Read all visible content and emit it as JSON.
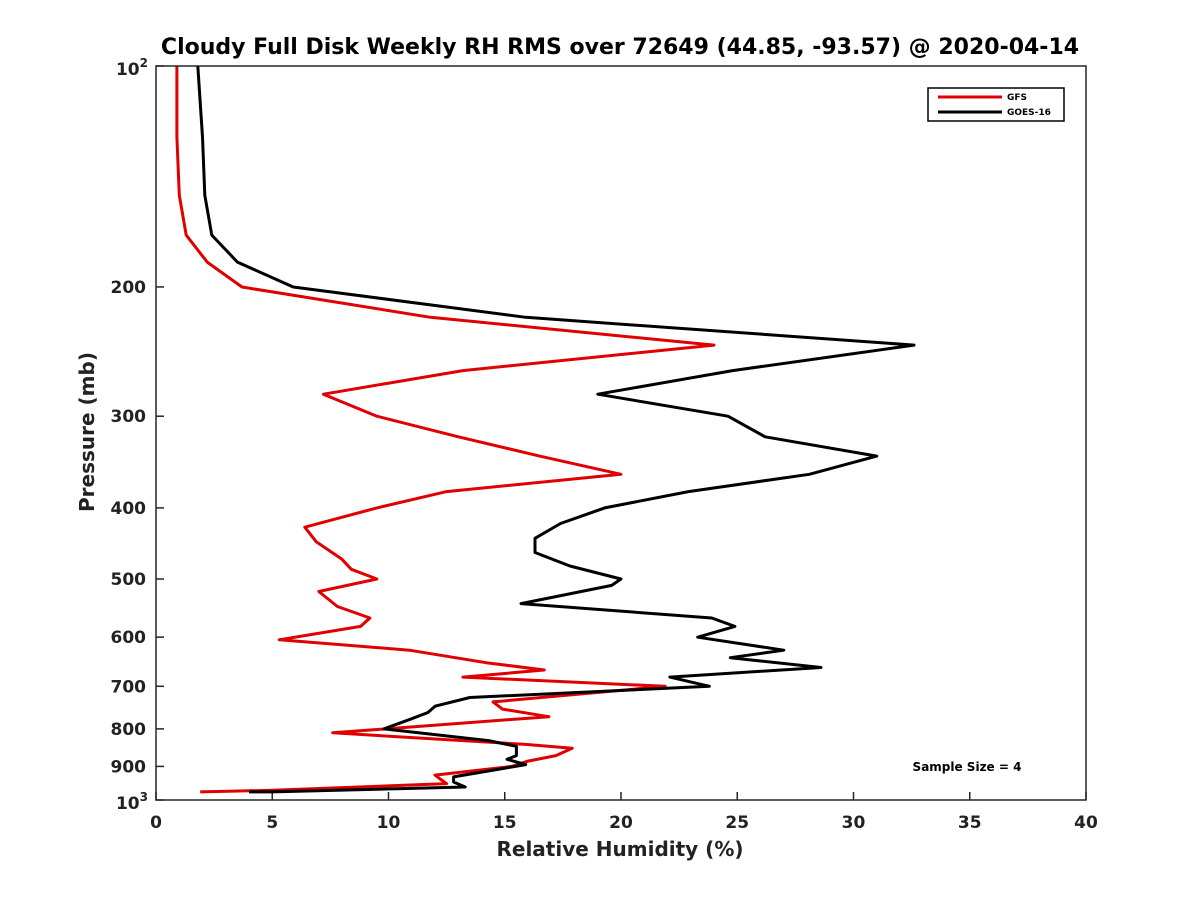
{
  "chart_data": {
    "type": "line",
    "title": "Cloudy Full Disk Weekly RH RMS over 72649 (44.85, -93.57) @ 2020-04-14",
    "xlabel": "Relative Humidity (%)",
    "ylabel": "Pressure (mb)",
    "xlim": [
      0,
      40
    ],
    "ylim": [
      100,
      1000
    ],
    "y_scale": "log",
    "y_reversed": true,
    "grid": false,
    "legend_position": "top-right",
    "x_ticks": [
      0,
      5,
      10,
      15,
      20,
      25,
      30,
      35,
      40
    ],
    "y_ticks": [
      {
        "value": 100,
        "base": "10",
        "exp": "2"
      },
      {
        "value": 200,
        "label": "200"
      },
      {
        "value": 300,
        "label": "300"
      },
      {
        "value": 400,
        "label": "400"
      },
      {
        "value": 500,
        "label": "500"
      },
      {
        "value": 600,
        "label": "600"
      },
      {
        "value": 700,
        "label": "700"
      },
      {
        "value": 800,
        "label": "800"
      },
      {
        "value": 900,
        "label": "900"
      },
      {
        "value": 1000,
        "base": "10",
        "exp": "3"
      }
    ],
    "annotation": "Sample Size = 4",
    "series": [
      {
        "name": "GFS",
        "color": "#e00000",
        "points": [
          [
            0.9,
            100
          ],
          [
            0.9,
            125
          ],
          [
            1.0,
            150
          ],
          [
            1.3,
            170
          ],
          [
            2.2,
            185
          ],
          [
            3.7,
            200
          ],
          [
            11.8,
            220
          ],
          [
            24.0,
            240
          ],
          [
            13.2,
            260
          ],
          [
            7.2,
            280
          ],
          [
            9.5,
            300
          ],
          [
            13.0,
            320
          ],
          [
            16.5,
            340
          ],
          [
            20.0,
            360
          ],
          [
            12.5,
            380
          ],
          [
            9.5,
            400
          ],
          [
            6.4,
            425
          ],
          [
            6.9,
            445
          ],
          [
            8.0,
            470
          ],
          [
            8.4,
            485
          ],
          [
            9.5,
            500
          ],
          [
            7.0,
            520
          ],
          [
            7.8,
            545
          ],
          [
            9.2,
            565
          ],
          [
            8.8,
            580
          ],
          [
            5.3,
            605
          ],
          [
            10.9,
            625
          ],
          [
            14.2,
            650
          ],
          [
            16.7,
            665
          ],
          [
            13.2,
            680
          ],
          [
            21.9,
            700
          ],
          [
            14.5,
            735
          ],
          [
            14.9,
            752
          ],
          [
            16.9,
            770
          ],
          [
            7.6,
            810
          ],
          [
            15.9,
            840
          ],
          [
            17.9,
            850
          ],
          [
            17.2,
            870
          ],
          [
            16.0,
            885
          ],
          [
            15.3,
            900
          ],
          [
            12.0,
            925
          ],
          [
            12.2,
            935
          ],
          [
            12.5,
            950
          ],
          [
            5.0,
            970
          ],
          [
            1.9,
            975
          ]
        ]
      },
      {
        "name": "GOES-16",
        "color": "#000000",
        "points": [
          [
            1.8,
            100
          ],
          [
            2.0,
            125
          ],
          [
            2.1,
            150
          ],
          [
            2.4,
            170
          ],
          [
            3.5,
            185
          ],
          [
            5.9,
            200
          ],
          [
            15.9,
            220
          ],
          [
            32.6,
            240
          ],
          [
            24.8,
            260
          ],
          [
            19.0,
            280
          ],
          [
            24.6,
            300
          ],
          [
            26.2,
            320
          ],
          [
            31.0,
            340
          ],
          [
            28.1,
            360
          ],
          [
            22.9,
            380
          ],
          [
            19.3,
            400
          ],
          [
            17.4,
            420
          ],
          [
            16.3,
            440
          ],
          [
            16.3,
            460
          ],
          [
            17.8,
            480
          ],
          [
            20.0,
            500
          ],
          [
            19.6,
            510
          ],
          [
            15.7,
            540
          ],
          [
            23.9,
            565
          ],
          [
            24.9,
            580
          ],
          [
            23.3,
            600
          ],
          [
            27.0,
            625
          ],
          [
            24.7,
            640
          ],
          [
            28.6,
            660
          ],
          [
            22.1,
            680
          ],
          [
            23.8,
            700
          ],
          [
            13.5,
            725
          ],
          [
            12.0,
            745
          ],
          [
            11.7,
            760
          ],
          [
            11.0,
            775
          ],
          [
            9.8,
            800
          ],
          [
            14.3,
            830
          ],
          [
            15.5,
            845
          ],
          [
            15.5,
            870
          ],
          [
            15.1,
            880
          ],
          [
            15.9,
            895
          ],
          [
            12.8,
            930
          ],
          [
            12.8,
            945
          ],
          [
            13.3,
            960
          ],
          [
            5.0,
            975
          ],
          [
            4.0,
            975
          ]
        ]
      }
    ]
  }
}
